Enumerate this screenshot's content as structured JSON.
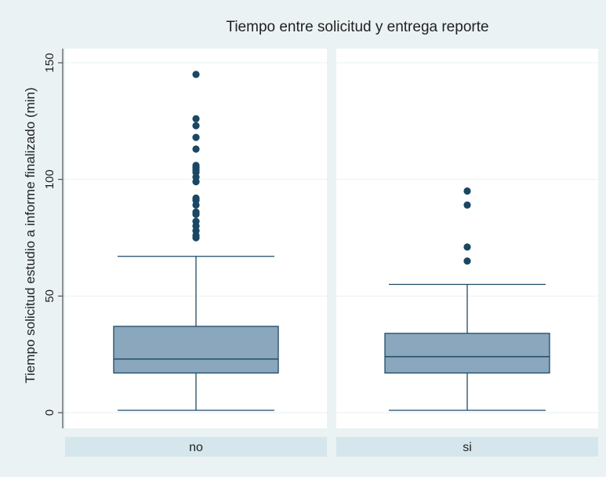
{
  "chart_data": {
    "type": "box",
    "title": "Tiempo entre solicitud y entrega reporte",
    "xlabel": "",
    "ylabel": "Tiempo solicitud estudio a informe finalizado (min)",
    "ylim": [
      0,
      150
    ],
    "yticks": [
      0,
      50,
      100,
      150
    ],
    "grid": true,
    "panels": [
      {
        "label": "no",
        "whisker_low": 1,
        "q1": 17,
        "median": 23,
        "q3": 37,
        "whisker_high": 67,
        "outliers": [
          75,
          76,
          78,
          80,
          82,
          85,
          86,
          89,
          91,
          92,
          99,
          101,
          103,
          104,
          105,
          106,
          113,
          118,
          123,
          126,
          145
        ]
      },
      {
        "label": "si",
        "whisker_low": 1,
        "q1": 17,
        "median": 24,
        "q3": 34,
        "whisker_high": 55,
        "outliers": [
          65,
          71,
          89,
          95
        ]
      }
    ],
    "colors": {
      "background": "#eaf2f3",
      "plot_area": "#ffffff",
      "box_fill": "#8aa7bd",
      "box_stroke": "#1e4a66",
      "outlier": "#1a4763",
      "grid": "#eaf2f3",
      "strip": "#d5e6ec"
    }
  }
}
